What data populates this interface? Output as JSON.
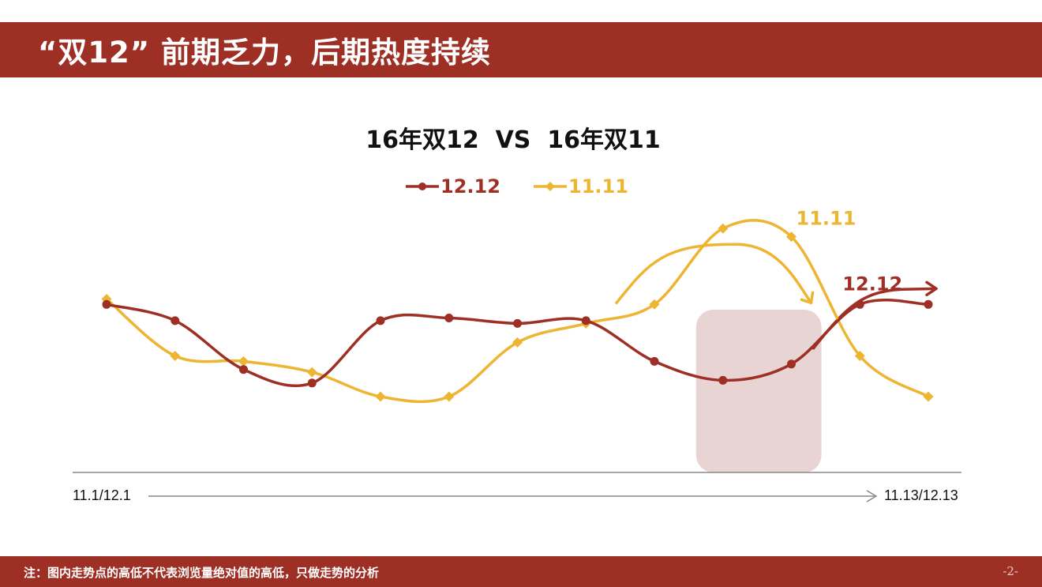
{
  "header": {
    "title": "“双12” 前期乏力，后期热度持续"
  },
  "footer": {
    "note": "注：图内走势点的高低不代表浏览量绝对值的高低，只做走势的分析",
    "page": "-2-"
  },
  "colors": {
    "brand": "#9e2f25",
    "series_1212": "#9e2f25",
    "series_1111": "#edb531",
    "highlight": "#e8d4d2",
    "axis": "#888888"
  },
  "chart_data": {
    "type": "line",
    "title": "16年双12  VS  16年双11",
    "x": [
      1,
      2,
      3,
      4,
      5,
      6,
      7,
      8,
      9,
      10,
      11,
      12,
      13
    ],
    "x_start_label": "11.1/12.1",
    "x_end_label": "11.13/12.13",
    "y_axis_labeled": false,
    "ylim": [
      0,
      100
    ],
    "series": [
      {
        "name": "12.12",
        "marker": "circle",
        "values": [
          62,
          56,
          38,
          33,
          56,
          57,
          55,
          56,
          41,
          34,
          40,
          62,
          62
        ]
      },
      {
        "name": "11.11",
        "marker": "diamond",
        "values": [
          64,
          43,
          41,
          37,
          28,
          28,
          48,
          55,
          62,
          90,
          87,
          43,
          28
        ]
      }
    ],
    "annotations": [
      {
        "text": "11.11",
        "series": "11.11",
        "note": "trend arrow rising then falling"
      },
      {
        "text": "12.12",
        "series": "12.12",
        "note": "trend arrow rising"
      }
    ],
    "highlight_range_x": [
      10,
      11
    ],
    "grid": false,
    "legend_placement": "top-center"
  }
}
